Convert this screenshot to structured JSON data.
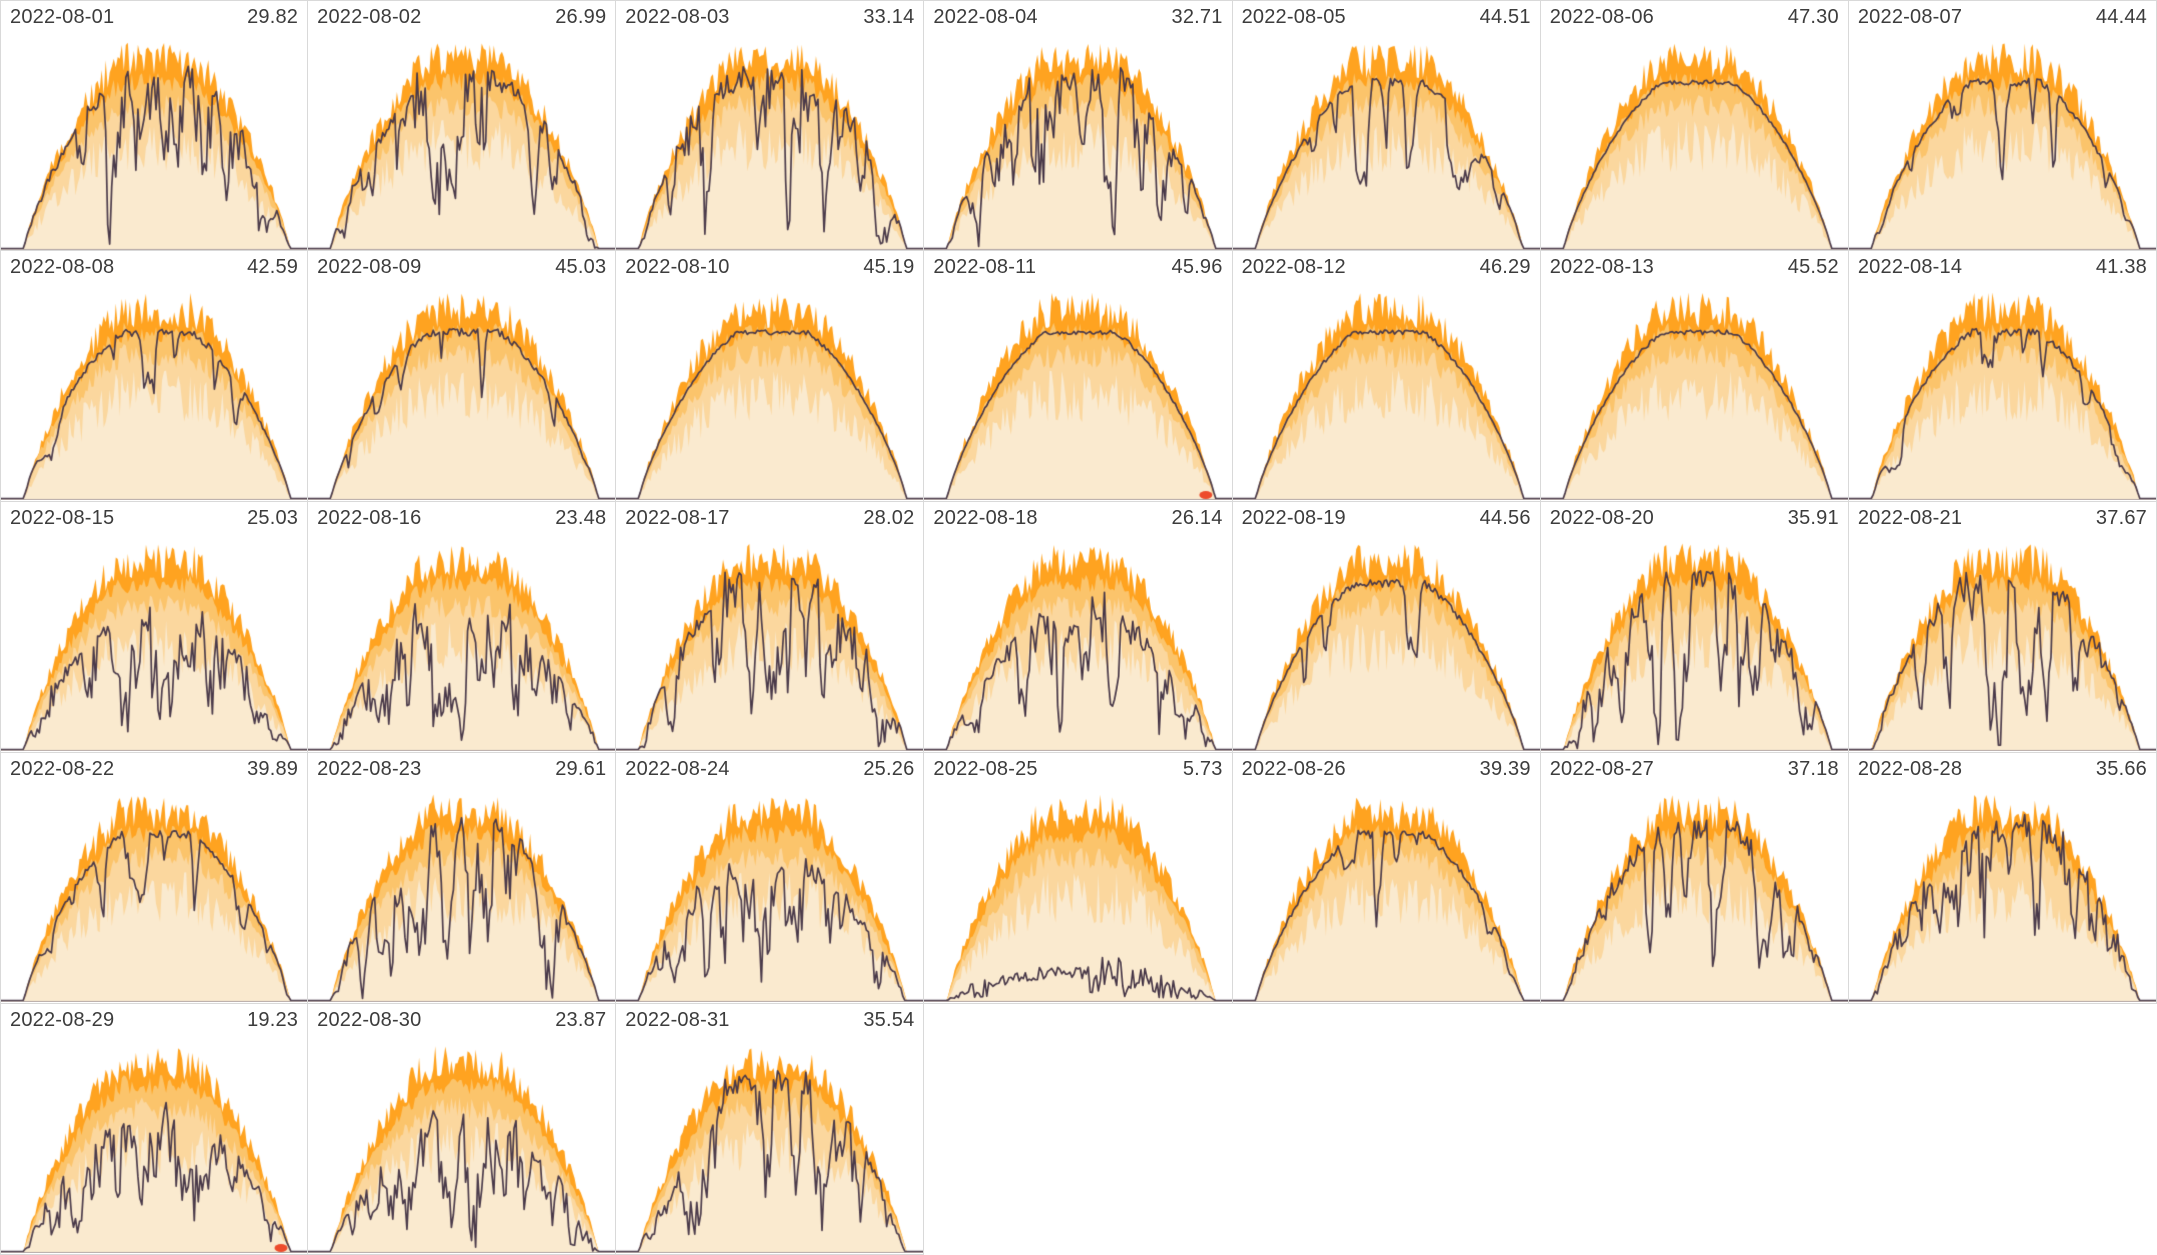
{
  "colors": {
    "band_max": "#FFA320",
    "band_p75": "#FBC46B",
    "band_p50": "#FBD79E",
    "band_p25": "#FAEACF",
    "line": "#4A3A4A",
    "marker": "#ED4B2C",
    "header_text": "#3C3C3C",
    "panel_border": "#D9D9D9",
    "axis": "#B5ABA9",
    "background": "#FFFFFF"
  },
  "grid": {
    "columns": 7,
    "rows": 5,
    "panel_count": 31,
    "empty_trailing_cells": 4
  },
  "chart_data": {
    "type": "area",
    "description": "Calendar grid of daily small-multiple charts: layered orange percentile bands of expected solar output over the course of each day, with a dark line showing the actual measured output and the daily total printed top-right.",
    "x": "time of day (no axis ticks shown)",
    "y": "output (no axis ticks shown)",
    "band_levels": [
      "max",
      "p75",
      "p50",
      "p25"
    ],
    "legend": "none",
    "grid_lines": "off",
    "panels": [
      {
        "date": "2022-08-01",
        "value": "29.82",
        "sky": "broken",
        "marker": false
      },
      {
        "date": "2022-08-02",
        "value": "26.99",
        "sky": "broken",
        "marker": false
      },
      {
        "date": "2022-08-03",
        "value": "33.14",
        "sky": "broken",
        "marker": false
      },
      {
        "date": "2022-08-04",
        "value": "32.71",
        "sky": "broken",
        "marker": false
      },
      {
        "date": "2022-08-05",
        "value": "44.51",
        "sky": "clear-dips",
        "marker": false
      },
      {
        "date": "2022-08-06",
        "value": "47.30",
        "sky": "clear",
        "marker": false
      },
      {
        "date": "2022-08-07",
        "value": "44.44",
        "sky": "clear-dips",
        "marker": false
      },
      {
        "date": "2022-08-08",
        "value": "42.59",
        "sky": "clear-dips",
        "marker": false
      },
      {
        "date": "2022-08-09",
        "value": "45.03",
        "sky": "clear-dips",
        "marker": false
      },
      {
        "date": "2022-08-10",
        "value": "45.19",
        "sky": "clear",
        "marker": false
      },
      {
        "date": "2022-08-11",
        "value": "45.96",
        "sky": "clear",
        "marker": true
      },
      {
        "date": "2022-08-12",
        "value": "46.29",
        "sky": "clear",
        "marker": false
      },
      {
        "date": "2022-08-13",
        "value": "45.52",
        "sky": "clear",
        "marker": false
      },
      {
        "date": "2022-08-14",
        "value": "41.38",
        "sky": "clear-dips",
        "marker": false
      },
      {
        "date": "2022-08-15",
        "value": "25.03",
        "sky": "cloudy",
        "marker": false
      },
      {
        "date": "2022-08-16",
        "value": "23.48",
        "sky": "cloudy",
        "marker": false
      },
      {
        "date": "2022-08-17",
        "value": "28.02",
        "sky": "broken",
        "marker": false
      },
      {
        "date": "2022-08-18",
        "value": "26.14",
        "sky": "cloudy",
        "marker": false
      },
      {
        "date": "2022-08-19",
        "value": "44.56",
        "sky": "clear-dips",
        "marker": false
      },
      {
        "date": "2022-08-20",
        "value": "35.91",
        "sky": "broken",
        "marker": false
      },
      {
        "date": "2022-08-21",
        "value": "37.67",
        "sky": "broken",
        "marker": false
      },
      {
        "date": "2022-08-22",
        "value": "39.89",
        "sky": "clear-dips",
        "marker": false
      },
      {
        "date": "2022-08-23",
        "value": "29.61",
        "sky": "broken",
        "marker": false
      },
      {
        "date": "2022-08-24",
        "value": "25.26",
        "sky": "cloudy",
        "marker": false
      },
      {
        "date": "2022-08-25",
        "value": "5.73",
        "sky": "overcast",
        "marker": false
      },
      {
        "date": "2022-08-26",
        "value": "39.39",
        "sky": "clear-dips",
        "marker": false
      },
      {
        "date": "2022-08-27",
        "value": "37.18",
        "sky": "broken",
        "marker": false
      },
      {
        "date": "2022-08-28",
        "value": "35.66",
        "sky": "broken",
        "marker": false
      },
      {
        "date": "2022-08-29",
        "value": "19.23",
        "sky": "cloudy",
        "marker": true
      },
      {
        "date": "2022-08-30",
        "value": "23.87",
        "sky": "cloudy",
        "marker": false
      },
      {
        "date": "2022-08-31",
        "value": "35.54",
        "sky": "broken",
        "marker": false
      }
    ]
  }
}
